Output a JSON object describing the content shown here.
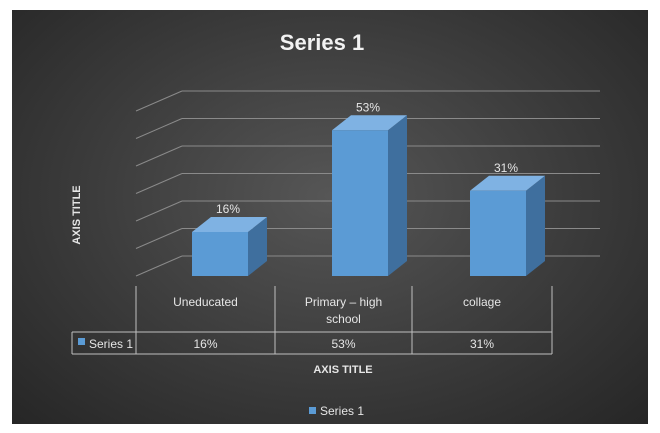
{
  "chart_data": {
    "type": "bar",
    "title": "Series 1",
    "categories": [
      "Uneducated",
      "Primary – high school",
      "collage"
    ],
    "series": [
      {
        "name": "Series 1",
        "values": [
          16,
          53,
          31
        ],
        "color": "#5b9bd5"
      }
    ],
    "data_labels": [
      "16%",
      "53%",
      "31%"
    ],
    "table_values": [
      "16%",
      "53%",
      "31%"
    ],
    "xlabel": "AXIS TITLE",
    "ylabel": "AXIS TITLE",
    "ylim": [
      0,
      60
    ],
    "grid": true,
    "legend": "bottom",
    "style": "3d-column-with-data-table"
  }
}
